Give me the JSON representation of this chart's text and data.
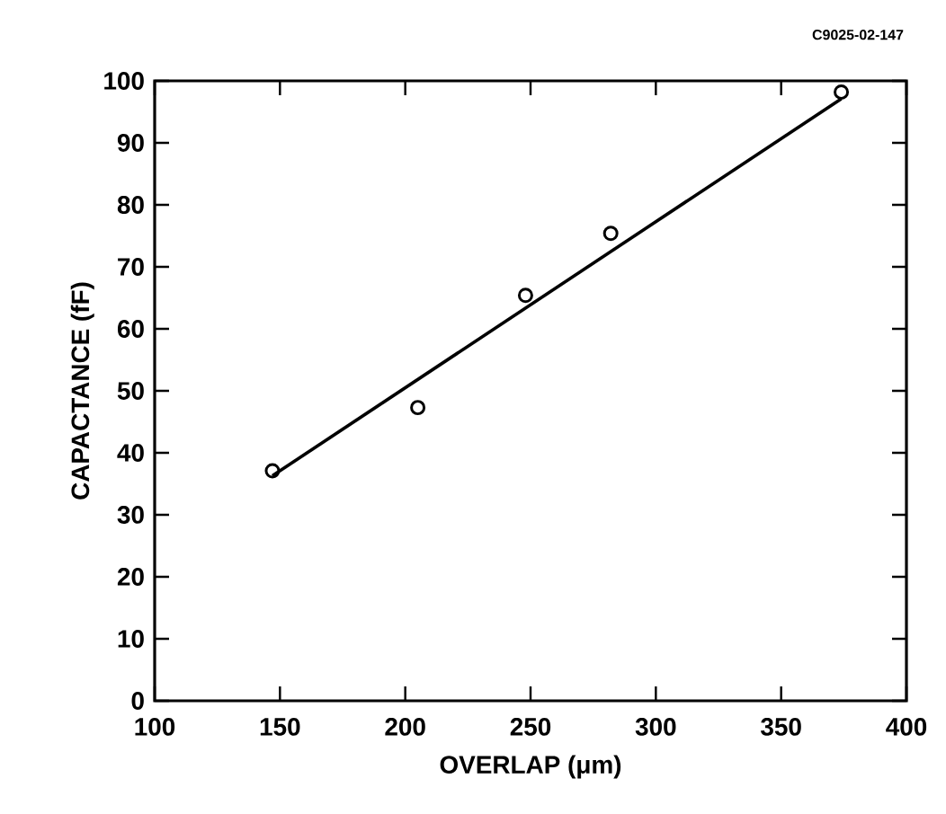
{
  "chart_data": {
    "type": "scatter",
    "xlabel": "OVERLAP (μm)",
    "ylabel": "CAPACTANCE (fF)",
    "annotations": [
      "C9025-02-147"
    ],
    "x": [
      147,
      205,
      248,
      282,
      374
    ],
    "series": [
      {
        "color": "#000000",
        "marker": "circle",
        "values": [
          37.1,
          47.3,
          65.4,
          75.4,
          98.2
        ]
      },
      {
        "type": "line",
        "color": "#000000",
        "x": [
          147,
          374
        ],
        "values": [
          36.3,
          97.1
        ]
      }
    ],
    "xlim": [
      100,
      400
    ],
    "xticks": [
      100,
      150,
      200,
      250,
      300,
      350,
      400
    ],
    "ylim": [
      0,
      100
    ],
    "yticks": [
      0,
      10,
      20,
      30,
      40,
      50,
      60,
      70,
      80,
      90,
      100
    ]
  }
}
